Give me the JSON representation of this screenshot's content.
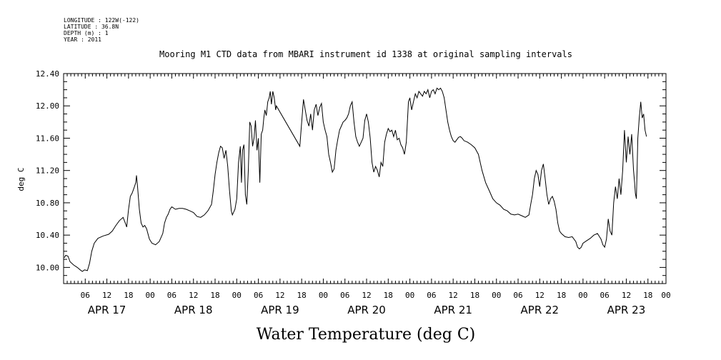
{
  "header": {
    "lines": [
      "LONGITUDE : 122W(-122)",
      "LATITUDE : 36.8N",
      "DEPTH (m) : 1",
      "YEAR : 2011"
    ]
  },
  "chart_data": {
    "type": "line",
    "title": "Mooring M1 CTD data from MBARI instrument id 1338 at original sampling intervals",
    "xlabel": "Water Temperature (deg C)",
    "ylabel": "deg C",
    "ylim": [
      9.8,
      12.4
    ],
    "yticks": [
      "10.00",
      "10.40",
      "10.80",
      "11.20",
      "11.60",
      "12.00",
      "12.40"
    ],
    "xlim_hours": [
      0,
      167
    ],
    "hour_ticks": [
      {
        "label": "06",
        "hour": 6
      },
      {
        "label": "12",
        "hour": 12
      },
      {
        "label": "18",
        "hour": 18
      },
      {
        "label": "00",
        "hour": 24
      },
      {
        "label": "06",
        "hour": 30
      },
      {
        "label": "12",
        "hour": 36
      },
      {
        "label": "18",
        "hour": 42
      },
      {
        "label": "00",
        "hour": 48
      },
      {
        "label": "06",
        "hour": 54
      },
      {
        "label": "12",
        "hour": 60
      },
      {
        "label": "18",
        "hour": 66
      },
      {
        "label": "00",
        "hour": 72
      },
      {
        "label": "06",
        "hour": 78
      },
      {
        "label": "12",
        "hour": 84
      },
      {
        "label": "18",
        "hour": 90
      },
      {
        "label": "00",
        "hour": 96
      },
      {
        "label": "06",
        "hour": 102
      },
      {
        "label": "12",
        "hour": 108
      },
      {
        "label": "18",
        "hour": 114
      },
      {
        "label": "00",
        "hour": 120
      },
      {
        "label": "06",
        "hour": 126
      },
      {
        "label": "12",
        "hour": 132
      },
      {
        "label": "18",
        "hour": 138
      },
      {
        "label": "00",
        "hour": 144
      },
      {
        "label": "06",
        "hour": 150
      },
      {
        "label": "12",
        "hour": 156
      },
      {
        "label": "18",
        "hour": 162
      },
      {
        "label": "00",
        "hour": 168
      }
    ],
    "day_labels": [
      {
        "label": "APR 17",
        "hour": 12
      },
      {
        "label": "APR 18",
        "hour": 36
      },
      {
        "label": "APR 19",
        "hour": 60
      },
      {
        "label": "APR 20",
        "hour": 84
      },
      {
        "label": "APR 21",
        "hour": 108
      },
      {
        "label": "APR 22",
        "hour": 132
      },
      {
        "label": "APR 23",
        "hour": 156
      }
    ],
    "series": [
      {
        "points": [
          [
            0.2,
            10.12
          ],
          [
            0.6,
            10.15
          ],
          [
            1.2,
            10.14
          ],
          [
            1.8,
            10.07
          ],
          [
            2.8,
            10.03
          ],
          [
            3.8,
            10.0
          ],
          [
            4.6,
            9.97
          ],
          [
            5.2,
            9.95
          ],
          [
            5.8,
            9.97
          ],
          [
            6.6,
            9.96
          ],
          [
            7.2,
            10.05
          ],
          [
            7.8,
            10.2
          ],
          [
            8.5,
            10.3
          ],
          [
            9.5,
            10.36
          ],
          [
            11,
            10.39
          ],
          [
            12.5,
            10.41
          ],
          [
            13.5,
            10.45
          ],
          [
            14.5,
            10.52
          ],
          [
            15.5,
            10.58
          ],
          [
            16.5,
            10.62
          ],
          [
            17.1,
            10.55
          ],
          [
            17.5,
            10.5
          ],
          [
            18,
            10.72
          ],
          [
            18.5,
            10.88
          ],
          [
            19,
            10.92
          ],
          [
            19.5,
            10.98
          ],
          [
            20,
            11.05
          ],
          [
            20.2,
            11.14
          ],
          [
            20.5,
            11.0
          ],
          [
            21,
            10.72
          ],
          [
            21.5,
            10.55
          ],
          [
            22,
            10.5
          ],
          [
            22.5,
            10.52
          ],
          [
            23,
            10.48
          ],
          [
            23.8,
            10.35
          ],
          [
            24.5,
            10.3
          ],
          [
            25.5,
            10.28
          ],
          [
            26.5,
            10.32
          ],
          [
            27.5,
            10.42
          ],
          [
            28,
            10.55
          ],
          [
            28.5,
            10.62
          ],
          [
            29,
            10.66
          ],
          [
            29.5,
            10.72
          ],
          [
            30,
            10.75
          ],
          [
            31,
            10.72
          ],
          [
            32,
            10.73
          ],
          [
            33,
            10.73
          ],
          [
            34,
            10.72
          ],
          [
            35,
            10.7
          ],
          [
            36,
            10.68
          ],
          [
            37,
            10.63
          ],
          [
            38,
            10.62
          ],
          [
            39,
            10.65
          ],
          [
            40,
            10.7
          ],
          [
            41,
            10.78
          ],
          [
            41.5,
            10.95
          ],
          [
            42,
            11.15
          ],
          [
            42.5,
            11.3
          ],
          [
            43,
            11.42
          ],
          [
            43.5,
            11.5
          ],
          [
            44,
            11.48
          ],
          [
            44.5,
            11.35
          ],
          [
            45,
            11.45
          ],
          [
            45.5,
            11.25
          ],
          [
            46,
            10.95
          ],
          [
            46.5,
            10.7
          ],
          [
            46.8,
            10.65
          ],
          [
            47.5,
            10.72
          ],
          [
            48,
            10.85
          ],
          [
            48.5,
            11.3
          ],
          [
            49,
            11.5
          ],
          [
            49.3,
            11.05
          ],
          [
            49.6,
            11.45
          ],
          [
            50,
            11.52
          ],
          [
            50.4,
            10.9
          ],
          [
            50.8,
            10.78
          ],
          [
            51.2,
            11.2
          ],
          [
            51.6,
            11.8
          ],
          [
            52,
            11.75
          ],
          [
            52.4,
            11.5
          ],
          [
            52.8,
            11.6
          ],
          [
            53.2,
            11.82
          ],
          [
            53.6,
            11.45
          ],
          [
            54,
            11.6
          ],
          [
            54.4,
            11.05
          ],
          [
            54.8,
            11.65
          ],
          [
            55.2,
            11.7
          ],
          [
            55.5,
            11.85
          ],
          [
            55.8,
            11.95
          ],
          [
            56.2,
            11.88
          ],
          [
            56.6,
            12.05
          ],
          [
            57,
            12.1
          ],
          [
            57.3,
            12.18
          ],
          [
            57.6,
            12.02
          ],
          [
            58,
            12.18
          ],
          [
            58.4,
            12.1
          ],
          [
            58.8,
            11.95
          ],
          [
            59,
            12.0
          ],
          [
            65.5,
            11.5
          ],
          [
            66,
            11.8
          ],
          [
            66.5,
            12.08
          ],
          [
            67,
            11.95
          ],
          [
            67.5,
            11.82
          ],
          [
            68,
            11.75
          ],
          [
            68.5,
            11.9
          ],
          [
            69,
            11.7
          ],
          [
            69.5,
            11.95
          ],
          [
            70,
            12.02
          ],
          [
            70.5,
            11.88
          ],
          [
            71,
            11.98
          ],
          [
            71.5,
            12.03
          ],
          [
            72,
            11.8
          ],
          [
            72.5,
            11.7
          ],
          [
            73,
            11.62
          ],
          [
            73.5,
            11.4
          ],
          [
            74,
            11.3
          ],
          [
            74.5,
            11.18
          ],
          [
            75,
            11.22
          ],
          [
            75.5,
            11.45
          ],
          [
            76,
            11.58
          ],
          [
            76.5,
            11.7
          ],
          [
            77,
            11.75
          ],
          [
            77.5,
            11.8
          ],
          [
            78,
            11.82
          ],
          [
            78.5,
            11.85
          ],
          [
            79,
            11.9
          ],
          [
            79.5,
            12.0
          ],
          [
            80,
            12.05
          ],
          [
            80.5,
            11.8
          ],
          [
            81,
            11.62
          ],
          [
            81.5,
            11.55
          ],
          [
            82,
            11.5
          ],
          [
            82.5,
            11.55
          ],
          [
            83,
            11.6
          ],
          [
            83.5,
            11.82
          ],
          [
            84,
            11.9
          ],
          [
            84.5,
            11.8
          ],
          [
            85,
            11.6
          ],
          [
            85.5,
            11.3
          ],
          [
            86,
            11.18
          ],
          [
            86.5,
            11.25
          ],
          [
            87,
            11.2
          ],
          [
            87.5,
            11.12
          ],
          [
            88,
            11.3
          ],
          [
            88.5,
            11.25
          ],
          [
            89,
            11.55
          ],
          [
            89.5,
            11.65
          ],
          [
            90,
            11.72
          ],
          [
            90.5,
            11.68
          ],
          [
            91,
            11.7
          ],
          [
            91.5,
            11.62
          ],
          [
            92,
            11.7
          ],
          [
            92.5,
            11.58
          ],
          [
            93,
            11.6
          ],
          [
            93.5,
            11.52
          ],
          [
            94,
            11.48
          ],
          [
            94.5,
            11.4
          ],
          [
            95,
            11.55
          ],
          [
            95.3,
            11.8
          ],
          [
            95.6,
            12.05
          ],
          [
            96,
            12.1
          ],
          [
            96.5,
            11.95
          ],
          [
            97,
            12.05
          ],
          [
            97.5,
            12.15
          ],
          [
            98,
            12.1
          ],
          [
            98.5,
            12.18
          ],
          [
            99,
            12.15
          ],
          [
            99.5,
            12.12
          ],
          [
            100,
            12.18
          ],
          [
            100.5,
            12.15
          ],
          [
            101,
            12.2
          ],
          [
            101.5,
            12.1
          ],
          [
            102,
            12.18
          ],
          [
            102.5,
            12.2
          ],
          [
            103,
            12.15
          ],
          [
            103.5,
            12.22
          ],
          [
            104,
            12.2
          ],
          [
            104.5,
            12.22
          ],
          [
            105,
            12.18
          ],
          [
            105.5,
            12.1
          ],
          [
            106,
            11.95
          ],
          [
            106.5,
            11.8
          ],
          [
            107,
            11.7
          ],
          [
            107.5,
            11.62
          ],
          [
            108,
            11.57
          ],
          [
            108.5,
            11.55
          ],
          [
            109,
            11.58
          ],
          [
            109.5,
            11.61
          ],
          [
            110,
            11.62
          ],
          [
            110.5,
            11.6
          ],
          [
            111,
            11.57
          ],
          [
            112,
            11.55
          ],
          [
            113,
            11.52
          ],
          [
            114,
            11.48
          ],
          [
            115,
            11.4
          ],
          [
            116,
            11.2
          ],
          [
            117,
            11.05
          ],
          [
            118,
            10.95
          ],
          [
            119,
            10.85
          ],
          [
            120,
            10.8
          ],
          [
            121,
            10.77
          ],
          [
            122,
            10.72
          ],
          [
            123,
            10.7
          ],
          [
            124,
            10.66
          ],
          [
            125,
            10.65
          ],
          [
            126,
            10.66
          ],
          [
            127,
            10.64
          ],
          [
            128,
            10.62
          ],
          [
            129,
            10.65
          ],
          [
            129.5,
            10.78
          ],
          [
            130,
            10.9
          ],
          [
            130.5,
            11.1
          ],
          [
            131,
            11.2
          ],
          [
            131.5,
            11.15
          ],
          [
            132,
            11.0
          ],
          [
            132.5,
            11.2
          ],
          [
            133,
            11.28
          ],
          [
            133.5,
            11.1
          ],
          [
            134,
            10.9
          ],
          [
            134.5,
            10.78
          ],
          [
            135,
            10.85
          ],
          [
            135.5,
            10.88
          ],
          [
            136,
            10.82
          ],
          [
            136.5,
            10.72
          ],
          [
            137,
            10.55
          ],
          [
            137.5,
            10.45
          ],
          [
            138,
            10.42
          ],
          [
            139,
            10.38
          ],
          [
            140,
            10.37
          ],
          [
            141,
            10.38
          ],
          [
            142,
            10.32
          ],
          [
            142.5,
            10.25
          ],
          [
            143,
            10.23
          ],
          [
            143.5,
            10.25
          ],
          [
            144,
            10.3
          ],
          [
            145,
            10.33
          ],
          [
            146,
            10.36
          ],
          [
            147,
            10.4
          ],
          [
            148,
            10.42
          ],
          [
            149,
            10.35
          ],
          [
            149.5,
            10.28
          ],
          [
            150,
            10.25
          ],
          [
            150.5,
            10.35
          ],
          [
            151,
            10.6
          ],
          [
            151.5,
            10.45
          ],
          [
            152,
            10.4
          ],
          [
            152.5,
            10.8
          ],
          [
            153,
            11.0
          ],
          [
            153.5,
            10.85
          ],
          [
            154,
            11.1
          ],
          [
            154.5,
            10.9
          ],
          [
            155,
            11.2
          ],
          [
            155.5,
            11.7
          ],
          [
            156,
            11.3
          ],
          [
            156.5,
            11.62
          ],
          [
            157,
            11.4
          ],
          [
            157.5,
            11.65
          ],
          [
            158,
            11.2
          ],
          [
            158.3,
            11.05
          ],
          [
            158.5,
            10.92
          ],
          [
            158.8,
            10.85
          ],
          [
            159.2,
            11.6
          ],
          [
            159.6,
            11.85
          ],
          [
            160,
            12.05
          ],
          [
            160.4,
            11.85
          ],
          [
            160.8,
            11.9
          ],
          [
            161.2,
            11.7
          ],
          [
            161.6,
            11.62
          ]
        ]
      }
    ]
  }
}
